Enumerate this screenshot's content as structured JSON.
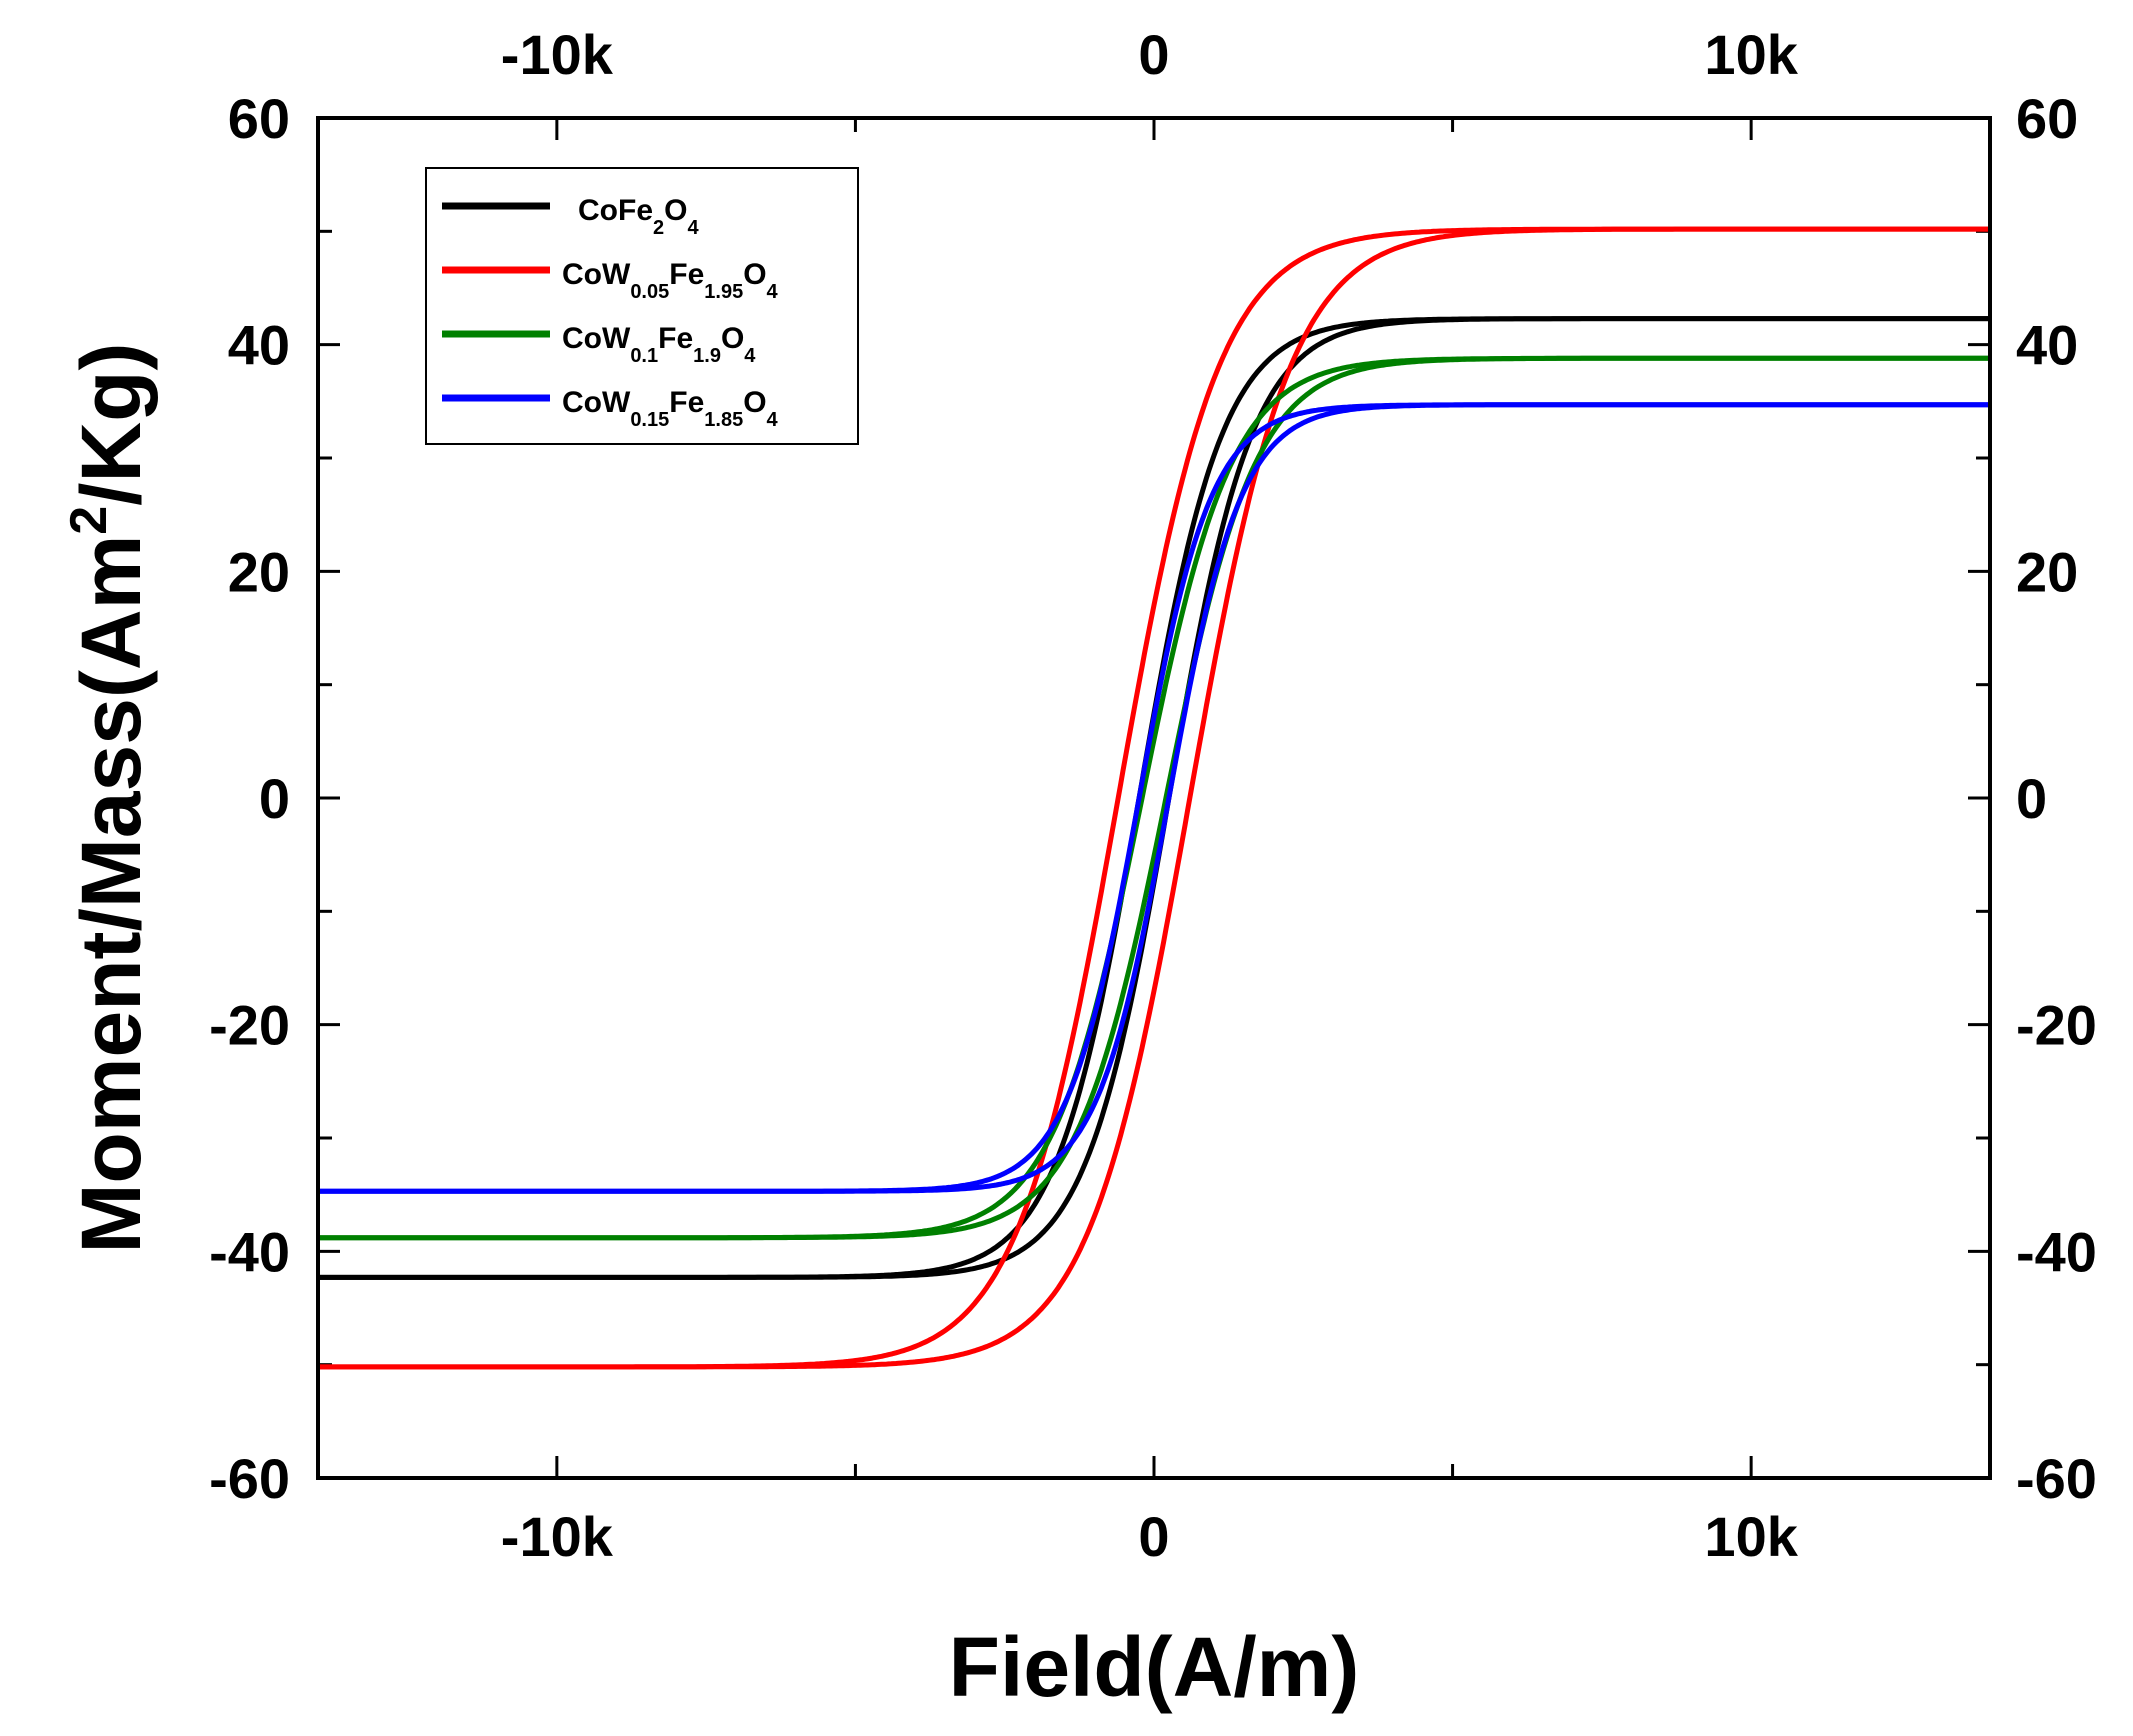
{
  "chart_data": {
    "type": "line",
    "title": "",
    "xlabel": "Field(A/m)",
    "ylabel_parts": [
      "Moment/Mass(Am",
      "2",
      "/Kg)"
    ],
    "xlim": [
      -14000,
      14000
    ],
    "ylim": [
      -60,
      60
    ],
    "x_ticks": [
      -10000,
      0,
      10000
    ],
    "x_tick_labels": [
      "-10k",
      "0",
      "10k"
    ],
    "y_ticks": [
      -60,
      -40,
      -20,
      0,
      20,
      40,
      60
    ],
    "y_tick_labels": [
      "-60",
      "-40",
      "-20",
      "0",
      "20",
      "40",
      "60"
    ],
    "top_axis_tick_labels": [
      "-10k",
      "0",
      "10k"
    ],
    "right_axis_tick_labels": [
      "-60",
      "-40",
      "-20",
      "0",
      "20",
      "40",
      "60"
    ],
    "grid": false,
    "legend_position": "top-left",
    "series": [
      {
        "name": "CoFe2O4",
        "legend_parts": [
          [
            "CoFe",
            0
          ],
          [
            "2",
            1
          ],
          [
            "O",
            0
          ],
          [
            "4",
            1
          ]
        ],
        "color": "#000000",
        "ms": 42.3,
        "hc": 250,
        "w": 1400
      },
      {
        "name": "CoW0.05Fe1.95O4",
        "legend_parts": [
          [
            "CoW",
            0
          ],
          [
            "0.05",
            1
          ],
          [
            "Fe",
            0
          ],
          [
            "1.95",
            1
          ],
          [
            "O",
            0
          ],
          [
            "4",
            1
          ]
        ],
        "color": "#ff0000",
        "ms": 50.2,
        "hc": 600,
        "w": 1700
      },
      {
        "name": "CoW0.1Fe1.9O4",
        "legend_parts": [
          [
            "CoW",
            0
          ],
          [
            "0.1",
            1
          ],
          [
            "Fe",
            0
          ],
          [
            "1.9",
            1
          ],
          [
            "O",
            0
          ],
          [
            "4",
            1
          ]
        ],
        "color": "#008000",
        "ms": 38.8,
        "hc": 200,
        "w": 1500
      },
      {
        "name": "CoW0.15Fe1.85O4",
        "legend_parts": [
          [
            "CoW",
            0
          ],
          [
            "0.15",
            1
          ],
          [
            "Fe",
            0
          ],
          [
            "1.85",
            1
          ],
          [
            "O",
            0
          ],
          [
            "4",
            1
          ]
        ],
        "color": "#0000ff",
        "ms": 34.7,
        "hc": 250,
        "w": 1200
      }
    ]
  }
}
